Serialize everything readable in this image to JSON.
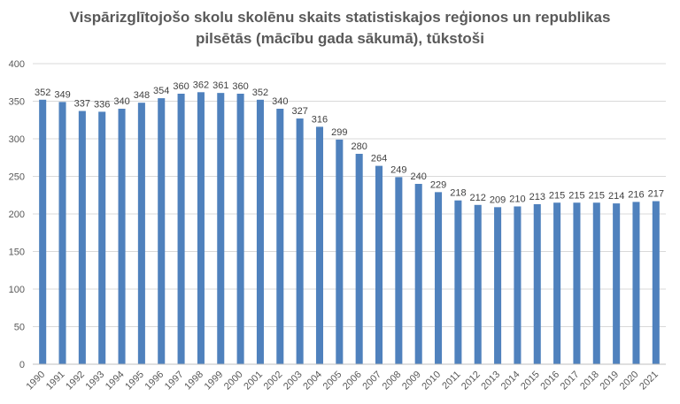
{
  "chart_data": {
    "type": "bar",
    "title_lines": [
      "Vispārizglītojošo skolu skolēnu skaits statistiskajos reģionos un republikas",
      "pilsētās (mācību gada sākumā), tūkstoši"
    ],
    "categories": [
      "1990",
      "1991",
      "1992",
      "1993",
      "1994",
      "1995",
      "1996",
      "1997",
      "1998",
      "1999",
      "2000",
      "2001",
      "2002",
      "2003",
      "2004",
      "2005",
      "2006",
      "2007",
      "2008",
      "2009",
      "2010",
      "2011",
      "2012",
      "2013",
      "2014",
      "2015",
      "2016",
      "2017",
      "2018",
      "2019",
      "2020",
      "2021"
    ],
    "values": [
      352,
      349,
      337,
      336,
      340,
      348,
      354,
      360,
      362,
      361,
      360,
      352,
      340,
      327,
      316,
      299,
      280,
      264,
      249,
      240,
      229,
      218,
      212,
      209,
      210,
      213,
      215,
      215,
      215,
      214,
      216,
      217
    ],
    "y_ticks": [
      0,
      50,
      100,
      150,
      200,
      250,
      300,
      350,
      400
    ],
    "ylim": [
      0,
      400
    ],
    "grid": true,
    "legend": "none",
    "bar_color": "#4F81BD",
    "grid_color": "#D9D9D9",
    "axis_color": "#BFBFBF"
  }
}
